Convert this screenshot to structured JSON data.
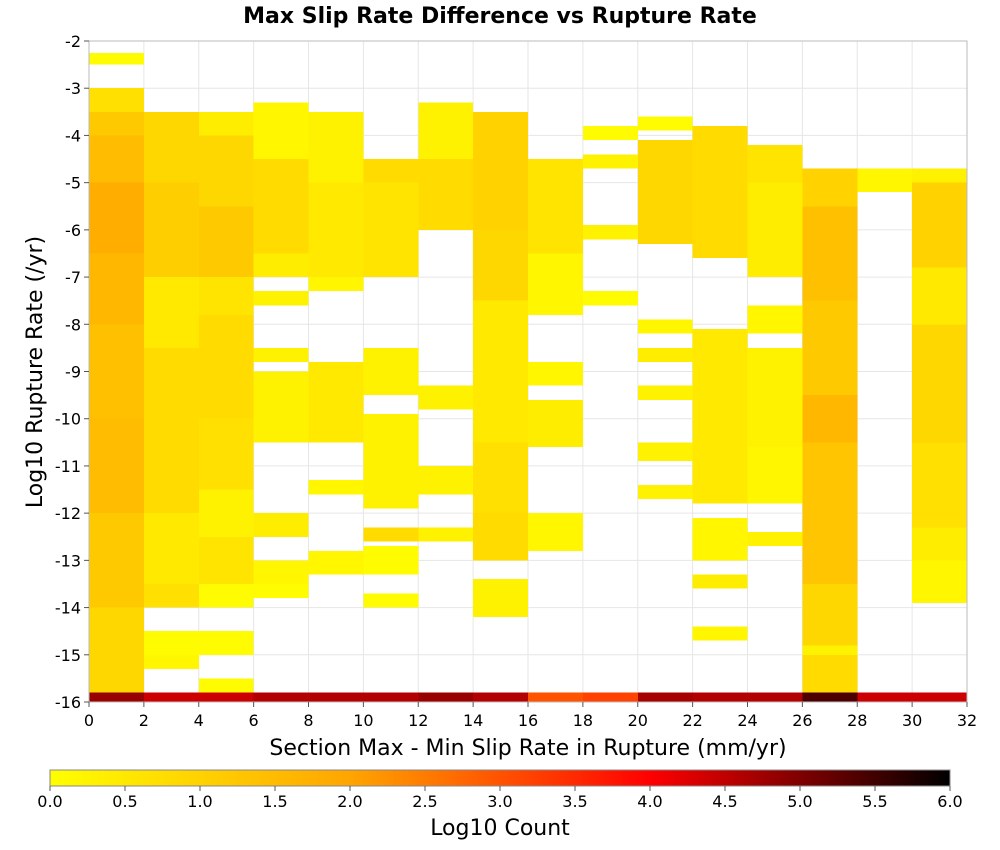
{
  "chart_data": {
    "type": "heatmap",
    "title": "Max Slip Rate Difference vs Rupture Rate",
    "xlabel": "Section Max - Min Slip Rate in Rupture (mm/yr)",
    "ylabel": "Log10 Rupture Rate (/yr)",
    "xlim": [
      0,
      32
    ],
    "ylim": [
      -16,
      -2
    ],
    "x_bin_width": 2,
    "y_bin_height": 0.25,
    "x_ticks": [
      "0",
      "2",
      "4",
      "6",
      "8",
      "10",
      "12",
      "14",
      "16",
      "18",
      "20",
      "22",
      "24",
      "26",
      "28",
      "30",
      "32"
    ],
    "y_ticks": [
      "-2",
      "-3",
      "-4",
      "-5",
      "-6",
      "-7",
      "-8",
      "-9",
      "-10",
      "-11",
      "-12",
      "-13",
      "-14",
      "-15",
      "-16"
    ],
    "colorbar": {
      "label": "Log10 Count",
      "range": [
        0.0,
        6.0
      ],
      "ticks": [
        "0.0",
        "0.5",
        "1.0",
        "1.5",
        "2.0",
        "2.5",
        "3.0",
        "3.5",
        "4.0",
        "4.5",
        "5.0",
        "5.5",
        "6.0"
      ],
      "colors": [
        "#FFFF00",
        "#FFA500",
        "#FF0000",
        "#000000"
      ]
    },
    "columns": [
      {
        "x": 0,
        "bands": [
          [
            -2.25,
            -2.5,
            0.1
          ],
          [
            -3.0,
            -3.5,
            0.7
          ],
          [
            -3.5,
            -4.0,
            1.2
          ],
          [
            -4.0,
            -5.0,
            1.5
          ],
          [
            -5.0,
            -6.5,
            1.8
          ],
          [
            -6.5,
            -8.0,
            1.6
          ],
          [
            -8.0,
            -10.0,
            1.4
          ],
          [
            -10.0,
            -12.0,
            1.5
          ],
          [
            -12.0,
            -14.0,
            1.2
          ],
          [
            -14.0,
            -15.8,
            0.9
          ],
          [
            -15.8,
            -16.0,
            4.8
          ]
        ]
      },
      {
        "x": 2,
        "bands": [
          [
            -3.5,
            -5.0,
            0.9
          ],
          [
            -5.0,
            -7.0,
            1.1
          ],
          [
            -7.0,
            -8.5,
            0.5
          ],
          [
            -8.5,
            -10.5,
            0.8
          ],
          [
            -10.5,
            -12.0,
            0.8
          ],
          [
            -12.0,
            -13.5,
            0.5
          ],
          [
            -13.5,
            -14.0,
            0.7
          ],
          [
            -14.5,
            -15.0,
            0.1
          ],
          [
            -15.0,
            -15.3,
            0.2
          ],
          [
            -15.8,
            -16.0,
            4.4
          ]
        ]
      },
      {
        "x": 4,
        "bands": [
          [
            -3.5,
            -4.0,
            0.4
          ],
          [
            -4.0,
            -5.5,
            0.9
          ],
          [
            -5.5,
            -7.0,
            1.2
          ],
          [
            -7.0,
            -7.8,
            0.6
          ],
          [
            -7.8,
            -10.0,
            0.8
          ],
          [
            -10.0,
            -11.5,
            0.7
          ],
          [
            -11.5,
            -12.0,
            0.3
          ],
          [
            -12.0,
            -12.5,
            0.3
          ],
          [
            -12.5,
            -13.5,
            0.6
          ],
          [
            -13.5,
            -14.0,
            0.1
          ],
          [
            -14.5,
            -15.0,
            0.1
          ],
          [
            -15.5,
            -15.8,
            0.1
          ],
          [
            -15.8,
            -16.0,
            4.4
          ]
        ]
      },
      {
        "x": 6,
        "bands": [
          [
            -3.3,
            -4.5,
            0.2
          ],
          [
            -4.5,
            -6.5,
            0.8
          ],
          [
            -6.5,
            -7.0,
            0.4
          ],
          [
            -7.3,
            -7.6,
            0.3
          ],
          [
            -8.5,
            -8.8,
            0.3
          ],
          [
            -9.0,
            -10.5,
            0.3
          ],
          [
            -12.0,
            -12.5,
            0.4
          ],
          [
            -13.0,
            -13.5,
            0.2
          ],
          [
            -13.5,
            -13.8,
            0.1
          ],
          [
            -15.8,
            -16.0,
            4.6
          ]
        ]
      },
      {
        "x": 8,
        "bands": [
          [
            -3.5,
            -5.0,
            0.3
          ],
          [
            -5.0,
            -7.0,
            0.5
          ],
          [
            -7.0,
            -7.3,
            0.2
          ],
          [
            -8.8,
            -10.5,
            0.5
          ],
          [
            -11.3,
            -11.6,
            0.2
          ],
          [
            -12.8,
            -13.3,
            0.2
          ],
          [
            -15.8,
            -16.0,
            4.6
          ]
        ]
      },
      {
        "x": 10,
        "bands": [
          [
            -4.5,
            -5.0,
            0.8
          ],
          [
            -5.0,
            -7.0,
            0.6
          ],
          [
            -8.5,
            -9.5,
            0.3
          ],
          [
            -9.9,
            -11.9,
            0.3
          ],
          [
            -12.3,
            -12.6,
            0.8
          ],
          [
            -12.7,
            -13.3,
            0.1
          ],
          [
            -13.7,
            -14.0,
            0.1
          ],
          [
            -15.8,
            -16.0,
            4.6
          ]
        ]
      },
      {
        "x": 12,
        "bands": [
          [
            -3.3,
            -4.5,
            0.3
          ],
          [
            -4.5,
            -6.0,
            0.8
          ],
          [
            -9.3,
            -9.8,
            0.3
          ],
          [
            -11.0,
            -11.6,
            0.3
          ],
          [
            -12.3,
            -12.6,
            0.3
          ],
          [
            -15.8,
            -16.0,
            4.8
          ]
        ]
      },
      {
        "x": 14,
        "bands": [
          [
            -3.5,
            -6.0,
            1.0
          ],
          [
            -6.0,
            -7.5,
            0.9
          ],
          [
            -7.5,
            -10.5,
            0.5
          ],
          [
            -10.5,
            -12.0,
            0.7
          ],
          [
            -12.0,
            -13.0,
            0.8
          ],
          [
            -13.4,
            -14.2,
            0.3
          ],
          [
            -15.8,
            -16.0,
            4.6
          ]
        ]
      },
      {
        "x": 16,
        "bands": [
          [
            -4.5,
            -6.5,
            0.6
          ],
          [
            -6.5,
            -7.8,
            0.2
          ],
          [
            -8.8,
            -9.3,
            0.2
          ],
          [
            -9.6,
            -10.6,
            0.4
          ],
          [
            -12.0,
            -12.8,
            0.2
          ],
          [
            -15.8,
            -16.0,
            3.0
          ]
        ]
      },
      {
        "x": 18,
        "bands": [
          [
            -3.8,
            -4.1,
            0.1
          ],
          [
            -4.4,
            -4.7,
            0.3
          ],
          [
            -5.9,
            -6.2,
            0.3
          ],
          [
            -7.3,
            -7.6,
            0.1
          ],
          [
            -15.8,
            -16.0,
            3.2
          ]
        ]
      },
      {
        "x": 20,
        "bands": [
          [
            -3.6,
            -3.9,
            0.1
          ],
          [
            -4.1,
            -6.3,
            0.9
          ],
          [
            -7.9,
            -8.2,
            0.2
          ],
          [
            -8.5,
            -8.8,
            0.4
          ],
          [
            -9.3,
            -9.6,
            0.3
          ],
          [
            -10.5,
            -10.9,
            0.3
          ],
          [
            -11.4,
            -11.7,
            0.3
          ],
          [
            -15.8,
            -16.0,
            4.7
          ]
        ]
      },
      {
        "x": 22,
        "bands": [
          [
            -3.8,
            -6.6,
            0.8
          ],
          [
            -8.1,
            -11.8,
            0.5
          ],
          [
            -12.1,
            -13.0,
            0.2
          ],
          [
            -13.3,
            -13.6,
            0.4
          ],
          [
            -14.4,
            -14.7,
            0.2
          ],
          [
            -15.8,
            -16.0,
            4.6
          ]
        ]
      },
      {
        "x": 24,
        "bands": [
          [
            -4.2,
            -5.0,
            0.6
          ],
          [
            -5.0,
            -7.0,
            0.4
          ],
          [
            -7.6,
            -8.2,
            0.2
          ],
          [
            -8.5,
            -10.6,
            0.3
          ],
          [
            -10.6,
            -11.8,
            0.2
          ],
          [
            -12.4,
            -12.7,
            0.3
          ],
          [
            -15.8,
            -16.0,
            4.6
          ]
        ]
      },
      {
        "x": 26,
        "bands": [
          [
            -4.7,
            -5.5,
            1.0
          ],
          [
            -5.5,
            -7.5,
            1.4
          ],
          [
            -7.5,
            -9.5,
            1.2
          ],
          [
            -9.5,
            -10.5,
            1.6
          ],
          [
            -10.5,
            -13.5,
            1.3
          ],
          [
            -13.5,
            -14.8,
            0.9
          ],
          [
            -14.8,
            -15.0,
            0.3
          ],
          [
            -15.0,
            -15.8,
            0.8
          ],
          [
            -15.8,
            -16.0,
            5.4
          ]
        ]
      },
      {
        "x": 28,
        "bands": [
          [
            -4.7,
            -5.2,
            0.2
          ],
          [
            -15.8,
            -16.0,
            4.4
          ]
        ]
      },
      {
        "x": 30,
        "bands": [
          [
            -4.7,
            -5.0,
            0.3
          ],
          [
            -5.0,
            -6.8,
            1.0
          ],
          [
            -6.8,
            -8.0,
            0.5
          ],
          [
            -8.0,
            -10.5,
            0.9
          ],
          [
            -10.5,
            -12.3,
            0.7
          ],
          [
            -12.3,
            -13.0,
            0.4
          ],
          [
            -13.0,
            -13.9,
            0.2
          ],
          [
            -15.8,
            -16.0,
            4.4
          ]
        ]
      }
    ]
  }
}
